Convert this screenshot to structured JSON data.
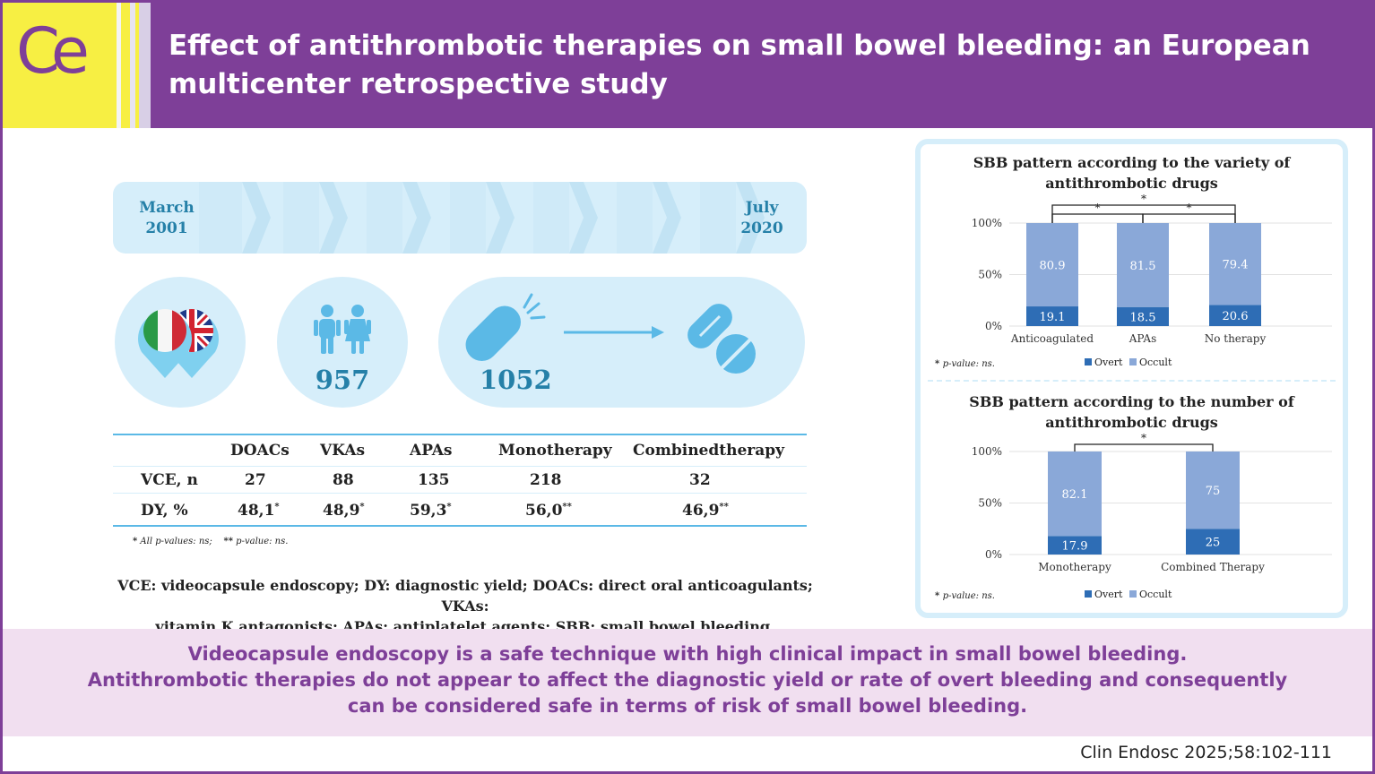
{
  "header": {
    "logo": "Ce",
    "title_line1": "Effect of antithrombotic therapies on small bowel bleeding: an European",
    "title_line2": "multicenter retrospective study"
  },
  "timeline": {
    "start_month": "March",
    "start_year": "2001",
    "end_month": "July",
    "end_year": "2020"
  },
  "stats": {
    "patients": "957",
    "procedures": "1052"
  },
  "table": {
    "headers": [
      "",
      "DOACs",
      "VKAs",
      "APAs",
      "Monotherapy",
      "Combinedtherapy"
    ],
    "row1": [
      "VCE, n",
      "27",
      "88",
      "135",
      "218",
      "32"
    ],
    "row2": [
      "DY, %",
      "48,1",
      "48,9",
      "59,3",
      "56,0",
      "46,9"
    ],
    "row2_marks": [
      "*",
      "*",
      "*",
      "**",
      "**"
    ]
  },
  "footnotes": {
    "all_p_star": "*",
    "all_p": "All p-values: ns;",
    "p_star": "**",
    "p": "p-value: ns."
  },
  "abbreviations": {
    "line1": "VCE: videocapsule endoscopy; DY: diagnostic yield; DOACs: direct oral anticoagulants; VKAs:",
    "line2": "vitamin K antagonists; APAs: antiplatelet agents; SBB: small bowel bleeding."
  },
  "chart_data": [
    {
      "type": "bar",
      "stacked": true,
      "title": "SBB pattern according to the variety of antithrombotic drugs",
      "title_line1": "SBB pattern according to the variety of",
      "title_line2": "antithrombotic drugs",
      "categories": [
        "Anticoagulated",
        "APAs",
        "No therapy"
      ],
      "series": [
        {
          "name": "Overt",
          "values": [
            19.1,
            18.5,
            20.6
          ],
          "color": "#2e6db5"
        },
        {
          "name": "Occult",
          "values": [
            80.9,
            81.5,
            79.4
          ],
          "color": "#8aa8d8"
        }
      ],
      "yticks": [
        "0%",
        "50%",
        "100%"
      ],
      "ylim": [
        0,
        100
      ],
      "significance": [
        "*",
        "*",
        "*"
      ],
      "note_star": "*",
      "note": "p-value: ns.",
      "legend_position": "bottom"
    },
    {
      "type": "bar",
      "stacked": true,
      "title": "SBB pattern according to the number of antithrombotic drugs",
      "title_line1": "SBB pattern according to the number of",
      "title_line2": "antithrombotic drugs",
      "categories": [
        "Monotherapy",
        "Combined Therapy"
      ],
      "series": [
        {
          "name": "Overt",
          "values": [
            17.9,
            25
          ],
          "color": "#2e6db5"
        },
        {
          "name": "Occult",
          "values": [
            82.1,
            75
          ],
          "color": "#8aa8d8"
        }
      ],
      "yticks": [
        "0%",
        "50%",
        "100%"
      ],
      "ylim": [
        0,
        100
      ],
      "significance": [
        "*"
      ],
      "note_star": "*",
      "note": "p-value: ns.",
      "legend_position": "bottom"
    }
  ],
  "conclusion": {
    "line1": "Videocapsule endoscopy is a safe technique with high clinical impact in small bowel bleeding.",
    "line2": "Antithrombotic therapies do not appear to affect the diagnostic yield or rate of overt bleeding and consequently",
    "line3": "can be considered safe in terms of risk of small bowel bleeding."
  },
  "citation": "Clin Endosc 2025;58:102-111"
}
